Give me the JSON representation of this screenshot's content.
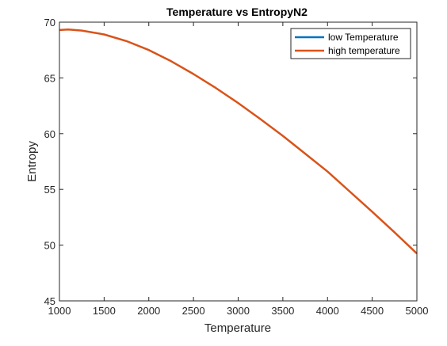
{
  "chart_data": {
    "type": "line",
    "title": "Temperature vs EntropyN2",
    "xlabel": "Temperature",
    "ylabel": "Entropy",
    "xlim": [
      1000,
      5000
    ],
    "ylim": [
      45,
      70
    ],
    "xticks": [
      1000,
      1500,
      2000,
      2500,
      3000,
      3500,
      4000,
      4500,
      5000
    ],
    "yticks": [
      45,
      50,
      55,
      60,
      65,
      70
    ],
    "grid": false,
    "legend_position": "top-right",
    "series": [
      {
        "name": "low Temperature",
        "color": "#0072BD",
        "x": [],
        "y": []
      },
      {
        "name": "high temperature",
        "color": "#D95319",
        "x": [
          1000,
          1100,
          1250,
          1500,
          1750,
          2000,
          2250,
          2500,
          2750,
          3000,
          3250,
          3500,
          3750,
          4000,
          4250,
          4500,
          4750,
          5000
        ],
        "y": [
          69.3,
          69.35,
          69.25,
          68.9,
          68.3,
          67.5,
          66.5,
          65.35,
          64.1,
          62.75,
          61.3,
          59.8,
          58.2,
          56.6,
          54.8,
          53.0,
          51.15,
          49.25
        ]
      }
    ]
  }
}
